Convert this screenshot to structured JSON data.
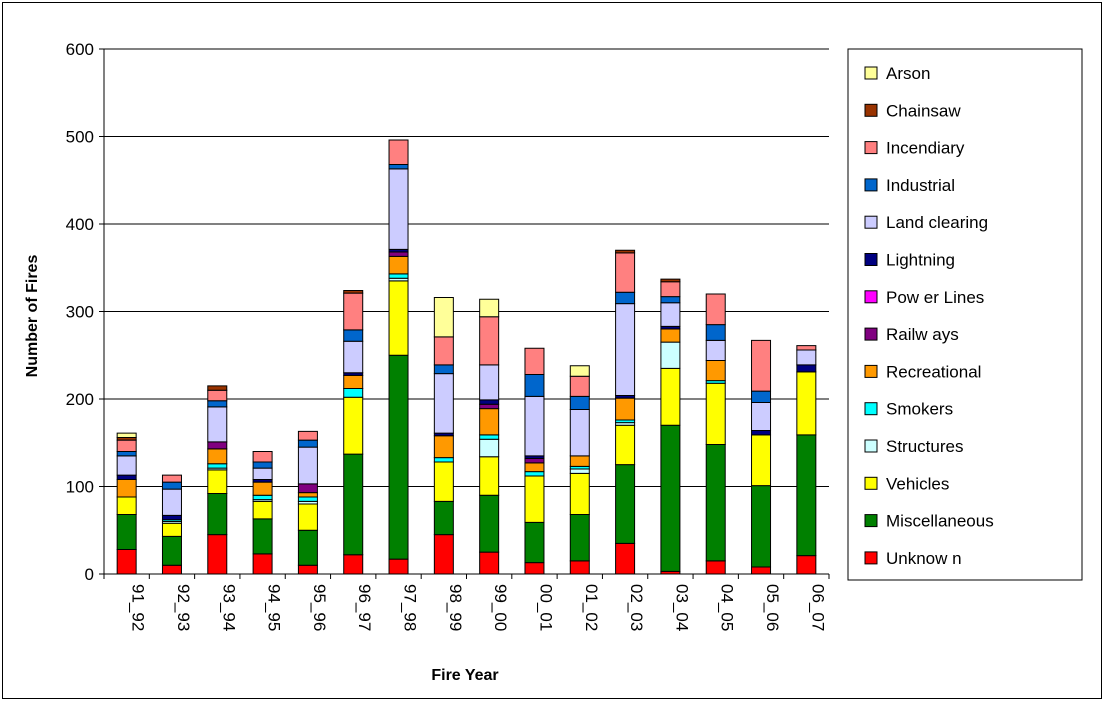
{
  "chart_data": {
    "type": "bar",
    "stacked": true,
    "xlabel": "Fire Year",
    "ylabel": "Number of Fires",
    "ylim": [
      0,
      600
    ],
    "yticks": [
      0,
      100,
      200,
      300,
      400,
      500,
      600
    ],
    "grid": true,
    "legend_position": "right",
    "categories": [
      "91_92",
      "92_93",
      "93_94",
      "94_95",
      "95_96",
      "96_97",
      "97_98",
      "98_99",
      "99_00",
      "00_01",
      "01_02",
      "02_03",
      "03_04",
      "04_05",
      "05_06",
      "06_07"
    ],
    "series": [
      {
        "name": "Unknow n",
        "color": "#FF0000",
        "values": [
          28,
          10,
          45,
          23,
          10,
          22,
          17,
          45,
          25,
          13,
          15,
          35,
          3,
          15,
          8,
          21
        ]
      },
      {
        "name": "Miscellaneous",
        "color": "#008000",
        "values": [
          40,
          33,
          47,
          40,
          40,
          115,
          233,
          38,
          65,
          46,
          53,
          90,
          167,
          133,
          93,
          138
        ]
      },
      {
        "name": "Vehicles",
        "color": "#FFFF00",
        "values": [
          20,
          15,
          27,
          20,
          30,
          65,
          85,
          45,
          44,
          53,
          47,
          45,
          65,
          70,
          58,
          72
        ]
      },
      {
        "name": "Structures",
        "color": "#CCFFFF",
        "values": [
          0,
          2,
          2,
          2,
          3,
          0,
          3,
          0,
          20,
          0,
          5,
          3,
          30,
          0,
          0,
          0
        ]
      },
      {
        "name": "Smokers",
        "color": "#00FFFF",
        "values": [
          0,
          2,
          5,
          5,
          5,
          10,
          5,
          5,
          5,
          5,
          3,
          3,
          0,
          3,
          0,
          0
        ]
      },
      {
        "name": "Recreational",
        "color": "#FF9900",
        "values": [
          20,
          0,
          17,
          15,
          5,
          15,
          20,
          25,
          30,
          10,
          12,
          25,
          15,
          23,
          0,
          0
        ]
      },
      {
        "name": "Railw ays",
        "color": "#800080",
        "values": [
          0,
          0,
          8,
          0,
          10,
          0,
          5,
          0,
          5,
          5,
          0,
          0,
          0,
          0,
          0,
          0
        ]
      },
      {
        "name": "Pow er Lines",
        "color": "#FF00FF",
        "values": [
          0,
          0,
          0,
          0,
          0,
          0,
          0,
          0,
          0,
          0,
          0,
          0,
          0,
          0,
          0,
          0
        ]
      },
      {
        "name": "Lightning",
        "color": "#000080",
        "values": [
          5,
          5,
          0,
          3,
          0,
          3,
          3,
          3,
          5,
          3,
          0,
          3,
          3,
          0,
          5,
          8
        ]
      },
      {
        "name": "Land clearing",
        "color": "#CCCCFF",
        "values": [
          22,
          30,
          40,
          13,
          42,
          36,
          92,
          68,
          40,
          68,
          53,
          105,
          27,
          23,
          32,
          17
        ]
      },
      {
        "name": "Industrial",
        "color": "#0066CC",
        "values": [
          5,
          8,
          7,
          7,
          8,
          13,
          5,
          10,
          0,
          25,
          15,
          13,
          7,
          18,
          13,
          0
        ]
      },
      {
        "name": "Incendiary",
        "color": "#FF8080",
        "values": [
          13,
          8,
          12,
          12,
          10,
          42,
          28,
          32,
          55,
          30,
          23,
          45,
          17,
          35,
          58,
          5
        ]
      },
      {
        "name": "Chainsaw",
        "color": "#993300",
        "values": [
          3,
          0,
          5,
          0,
          0,
          3,
          0,
          0,
          0,
          0,
          0,
          3,
          3,
          0,
          0,
          0
        ]
      },
      {
        "name": "Arson",
        "color": "#FFFF99",
        "values": [
          5,
          0,
          0,
          0,
          0,
          0,
          0,
          45,
          20,
          0,
          12,
          0,
          0,
          0,
          0,
          0
        ]
      }
    ]
  }
}
